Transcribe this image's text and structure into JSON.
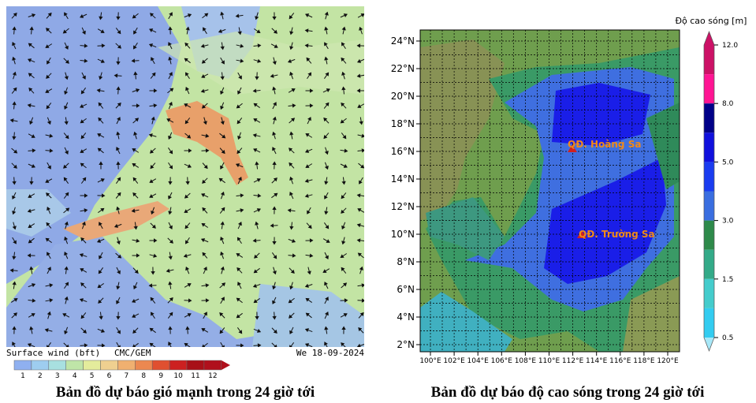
{
  "left_map": {
    "legend_title": "Surface wind (bft)",
    "model": "CMC/GEM",
    "date": "We 18-09-2024",
    "scale_labels": [
      "1",
      "2",
      "3",
      "4",
      "5",
      "6",
      "7",
      "8",
      "9",
      "10",
      "11",
      "12"
    ],
    "caption": "Bản đồ dự báo gió mạnh trong 24 giờ tới"
  },
  "right_map": {
    "legend_title": "Độ cao sóng [m]",
    "scale_labels": [
      "0.5",
      "1.5",
      "3.0",
      "5.0",
      "8.0",
      "12.0"
    ],
    "lat_labels": [
      "24°N",
      "22°N",
      "20°N",
      "18°N",
      "16°N",
      "14°N",
      "12°N",
      "10°N",
      "8°N",
      "6°N",
      "4°N",
      "2°N"
    ],
    "lon_labels": [
      "100°E",
      "102°E",
      "104°E",
      "106°E",
      "108°E",
      "110°E",
      "112°E",
      "114°E",
      "116°E",
      "118°E",
      "120°E"
    ],
    "places": [
      "QĐ. Hoàng Sa",
      "QĐ. Trường Sa"
    ],
    "caption": "Bản đồ dự báo độ cao sóng trong 24 giờ tới"
  }
}
